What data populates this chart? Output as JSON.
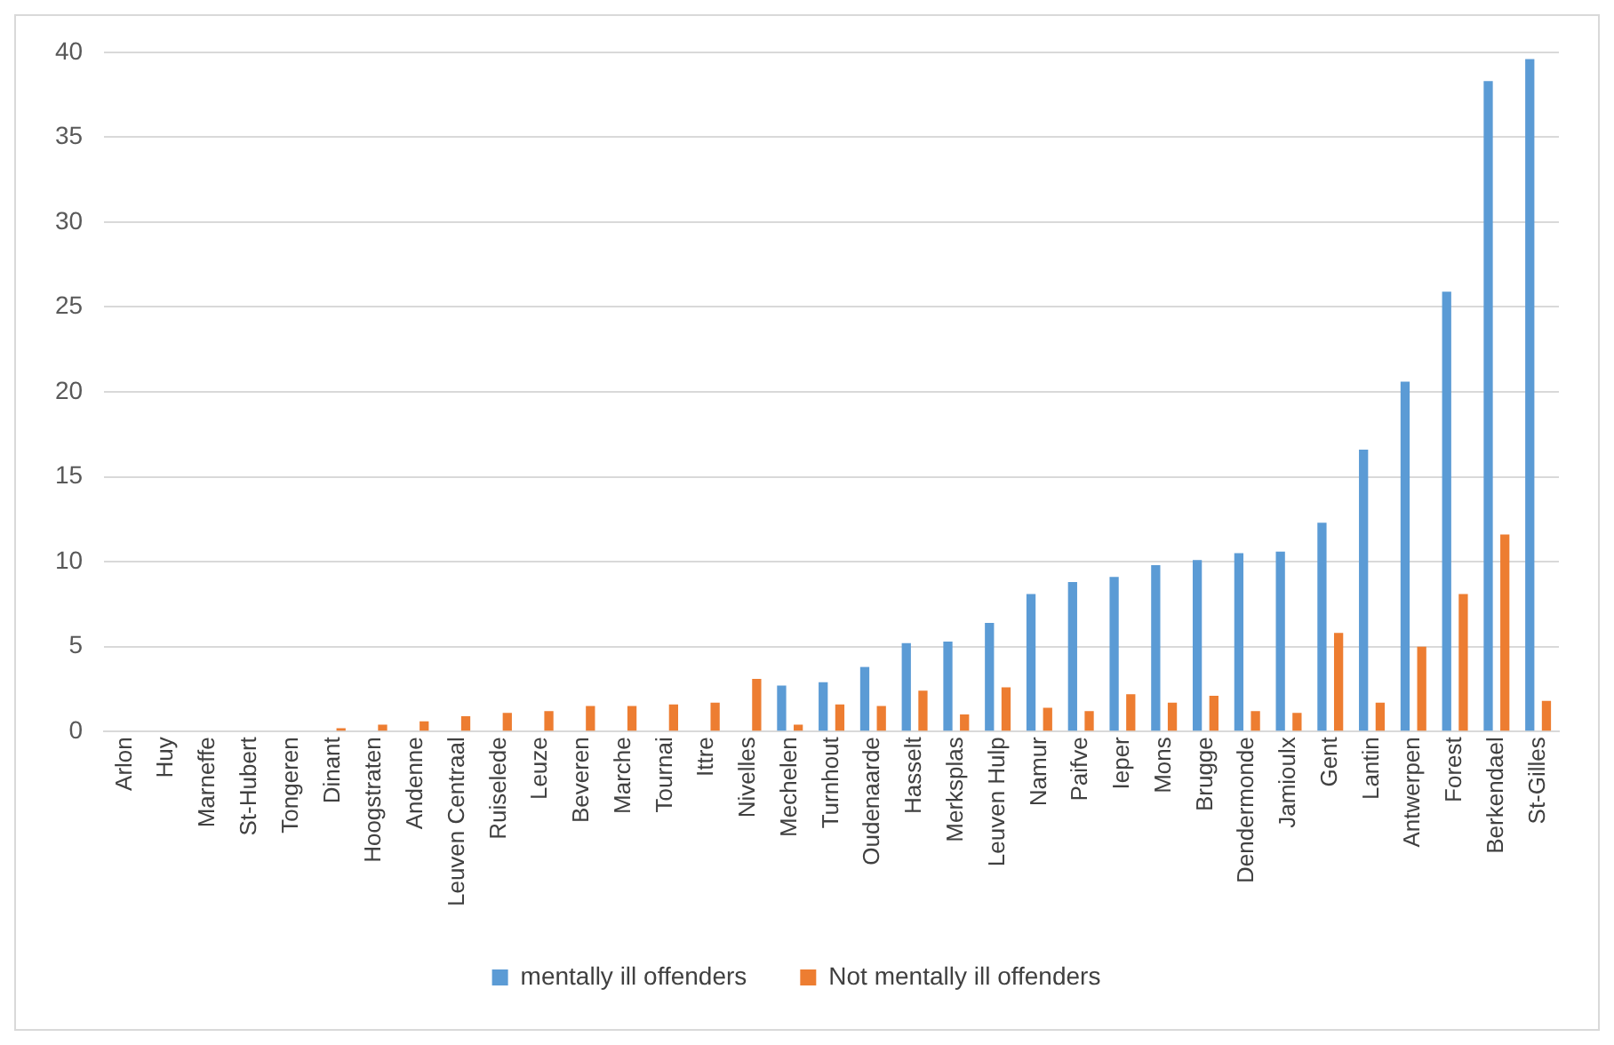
{
  "chart_data": {
    "type": "bar",
    "categories": [
      "Arlon",
      "Huy",
      "Marneffe",
      "St-Hubert",
      "Tongeren",
      "Dinant",
      "Hoogstraten",
      "Andenne",
      "Leuven Centraal",
      "Ruiselede",
      "Leuze",
      "Beveren",
      "Marche",
      "Tournai",
      "Ittre",
      "Nivelles",
      "Mechelen",
      "Turnhout",
      "Oudenaarde",
      "Hasselt",
      "Merksplas",
      "Leuven Hulp",
      "Namur",
      "Paifve",
      "Ieper",
      "Mons",
      "Brugge",
      "Dendermonde",
      "Jamioulx",
      "Gent",
      "Lantin",
      "Antwerpen",
      "Forest",
      "Berkendael",
      "St-Gilles"
    ],
    "series": [
      {
        "name": "mentally ill offenders",
        "color": "#5b9bd5",
        "values": [
          0,
          0,
          0,
          0,
          0,
          0,
          0,
          0,
          0,
          0,
          0,
          0,
          0,
          0,
          0,
          0,
          2.7,
          2.9,
          3.8,
          5.2,
          5.3,
          6.4,
          8.1,
          8.8,
          9.1,
          9.8,
          10.1,
          10.5,
          10.6,
          12.3,
          16.6,
          20.6,
          25.9,
          38.3,
          39.6
        ]
      },
      {
        "name": "Not mentally ill offenders",
        "color": "#ed7d31",
        "values": [
          0,
          0,
          0,
          0,
          0,
          0.2,
          0.4,
          0.6,
          0.9,
          1.1,
          1.2,
          1.5,
          1.5,
          1.6,
          1.7,
          3.1,
          0.4,
          1.6,
          1.5,
          2.4,
          1.0,
          2.6,
          1.4,
          1.2,
          2.2,
          1.7,
          2.1,
          1.2,
          1.1,
          5.8,
          1.7,
          5.0,
          8.1,
          11.6,
          1.8
        ]
      }
    ],
    "ylim": [
      0,
      40
    ],
    "yticks": [
      0,
      5,
      10,
      15,
      20,
      25,
      30,
      35,
      40
    ],
    "grid": "y",
    "legend": "bottom"
  }
}
